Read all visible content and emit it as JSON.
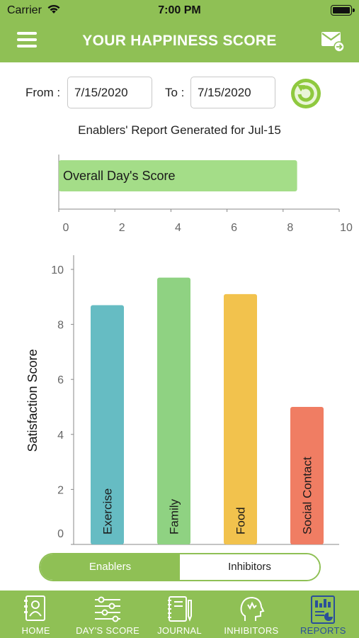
{
  "status_bar": {
    "carrier": "Carrier",
    "time": "7:00 PM"
  },
  "header": {
    "title": "YOUR HAPPINESS SCORE"
  },
  "filters": {
    "from_label": "From :",
    "from_value": "7/15/2020",
    "to_label": "To :",
    "to_value": "7/15/2020"
  },
  "report_title": "Enablers' Report Generated for Jul-15",
  "chart_data": [
    {
      "type": "bar",
      "orientation": "horizontal",
      "categories": [
        "Overall Day's Score"
      ],
      "values": [
        8.5
      ],
      "xlim": [
        0,
        10
      ],
      "xticks": [
        0,
        2,
        4,
        6,
        8,
        10
      ],
      "colors": [
        "#a4dd88"
      ]
    },
    {
      "type": "bar",
      "orientation": "vertical",
      "ylabel": "Satisfaction Score",
      "categories": [
        "Exercise",
        "Family",
        "Food",
        "Social Contact"
      ],
      "values": [
        8.7,
        9.7,
        9.1,
        5.0
      ],
      "ylim": [
        0,
        10
      ],
      "yticks": [
        0,
        2,
        4,
        6,
        8,
        10
      ],
      "colors": [
        "#66bcc3",
        "#8fd282",
        "#f2c24d",
        "#f07d63"
      ]
    }
  ],
  "segment": {
    "enablers_label": "Enablers",
    "inhibitors_label": "Inhibitors",
    "active": "enablers"
  },
  "tabs": [
    {
      "label": "HOME",
      "icon": "home-profile-icon"
    },
    {
      "label": "DAY'S SCORE",
      "icon": "sliders-icon"
    },
    {
      "label": "JOURNAL",
      "icon": "notebook-icon"
    },
    {
      "label": "INHIBITORS",
      "icon": "head-icon"
    },
    {
      "label": "REPORTS",
      "icon": "reports-icon"
    }
  ],
  "active_tab": "REPORTS",
  "colors": {
    "accent": "#8fc055",
    "active_tab": "#2a4f9a"
  }
}
